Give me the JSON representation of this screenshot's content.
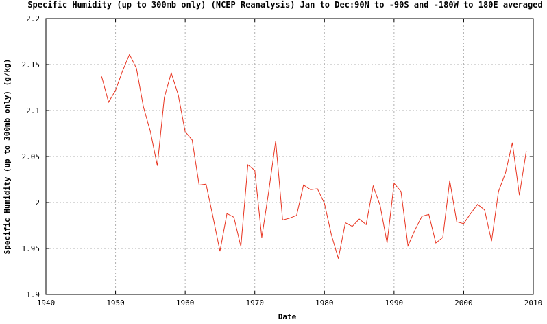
{
  "chart_data": {
    "type": "line",
    "title": "Specific Humidity (up to 300mb only) (NCEP Reanalysis) Jan to Dec:90N to -90S and -180W to 180E averaged",
    "xlabel": "Date",
    "ylabel": "Specific Humidity (up to 300mb only) (g/kg)",
    "xlim": [
      1940,
      2010
    ],
    "ylim": [
      1.9,
      2.2
    ],
    "x_ticks": [
      1940,
      1950,
      1960,
      1970,
      1980,
      1990,
      2000,
      2010
    ],
    "y_ticks": [
      1.9,
      1.95,
      2,
      2.05,
      2.1,
      2.15,
      2.2
    ],
    "x_tick_labels": [
      "1940",
      "1950",
      "1960",
      "1970",
      "1980",
      "1990",
      "2000",
      "2010"
    ],
    "y_tick_labels": [
      "1.9",
      "1.95",
      "2",
      "2.05",
      "2.1",
      "2.15",
      "2.2"
    ],
    "grid": true,
    "line_color": "#e8321e",
    "x": [
      1948,
      1949,
      1950,
      1951,
      1952,
      1953,
      1954,
      1955,
      1956,
      1957,
      1958,
      1959,
      1960,
      1961,
      1962,
      1963,
      1964,
      1965,
      1966,
      1967,
      1968,
      1969,
      1970,
      1971,
      1972,
      1973,
      1974,
      1975,
      1976,
      1977,
      1978,
      1979,
      1980,
      1981,
      1982,
      1983,
      1984,
      1985,
      1986,
      1987,
      1988,
      1989,
      1990,
      1991,
      1992,
      1993,
      1994,
      1995,
      1996,
      1997,
      1998,
      1999,
      2000,
      2001,
      2002,
      2003,
      2004,
      2005,
      2006,
      2007,
      2008,
      2009
    ],
    "y": [
      2.137,
      2.109,
      2.122,
      2.143,
      2.161,
      2.146,
      2.104,
      2.077,
      2.04,
      2.114,
      2.141,
      2.117,
      2.077,
      2.068,
      2.019,
      2.02,
      1.984,
      1.947,
      1.988,
      1.984,
      1.952,
      2.041,
      2.035,
      1.962,
      2.012,
      2.067,
      1.981,
      1.983,
      1.986,
      2.019,
      2.014,
      2.015,
      1.999,
      1.965,
      1.939,
      1.978,
      1.974,
      1.982,
      1.976,
      2.018,
      1.997,
      1.956,
      2.021,
      2.012,
      1.953,
      1.97,
      1.985,
      1.987,
      1.956,
      1.962,
      2.024,
      1.979,
      1.977,
      1.988,
      1.998,
      1.992,
      1.958,
      2.012,
      2.032,
      2.065,
      2.008,
      2.056
    ]
  }
}
